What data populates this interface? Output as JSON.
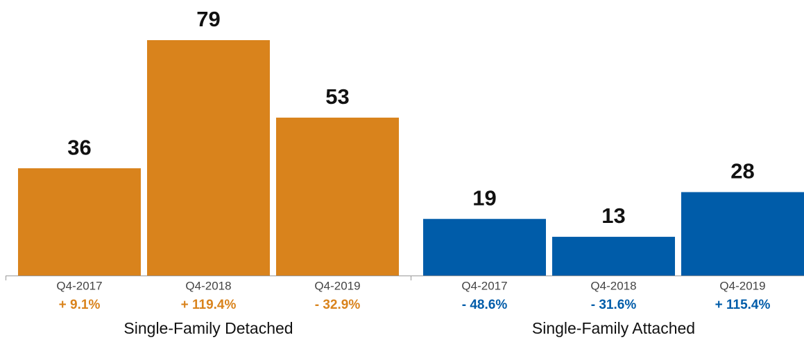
{
  "chart_data": [
    {
      "type": "bar",
      "title": "Single-Family Detached",
      "categories": [
        "Q4-2017",
        "Q4-2018",
        "Q4-2019"
      ],
      "values": [
        36,
        79,
        53
      ],
      "changes": [
        "+ 9.1%",
        "+ 119.4%",
        "- 32.9%"
      ],
      "color": "#d9831c"
    },
    {
      "type": "bar",
      "title": "Single-Family Attached",
      "categories": [
        "Q4-2017",
        "Q4-2018",
        "Q4-2019"
      ],
      "values": [
        19,
        13,
        28
      ],
      "changes": [
        "- 48.6%",
        "- 31.6%",
        "+ 115.4%"
      ],
      "color": "#005ca9"
    }
  ]
}
